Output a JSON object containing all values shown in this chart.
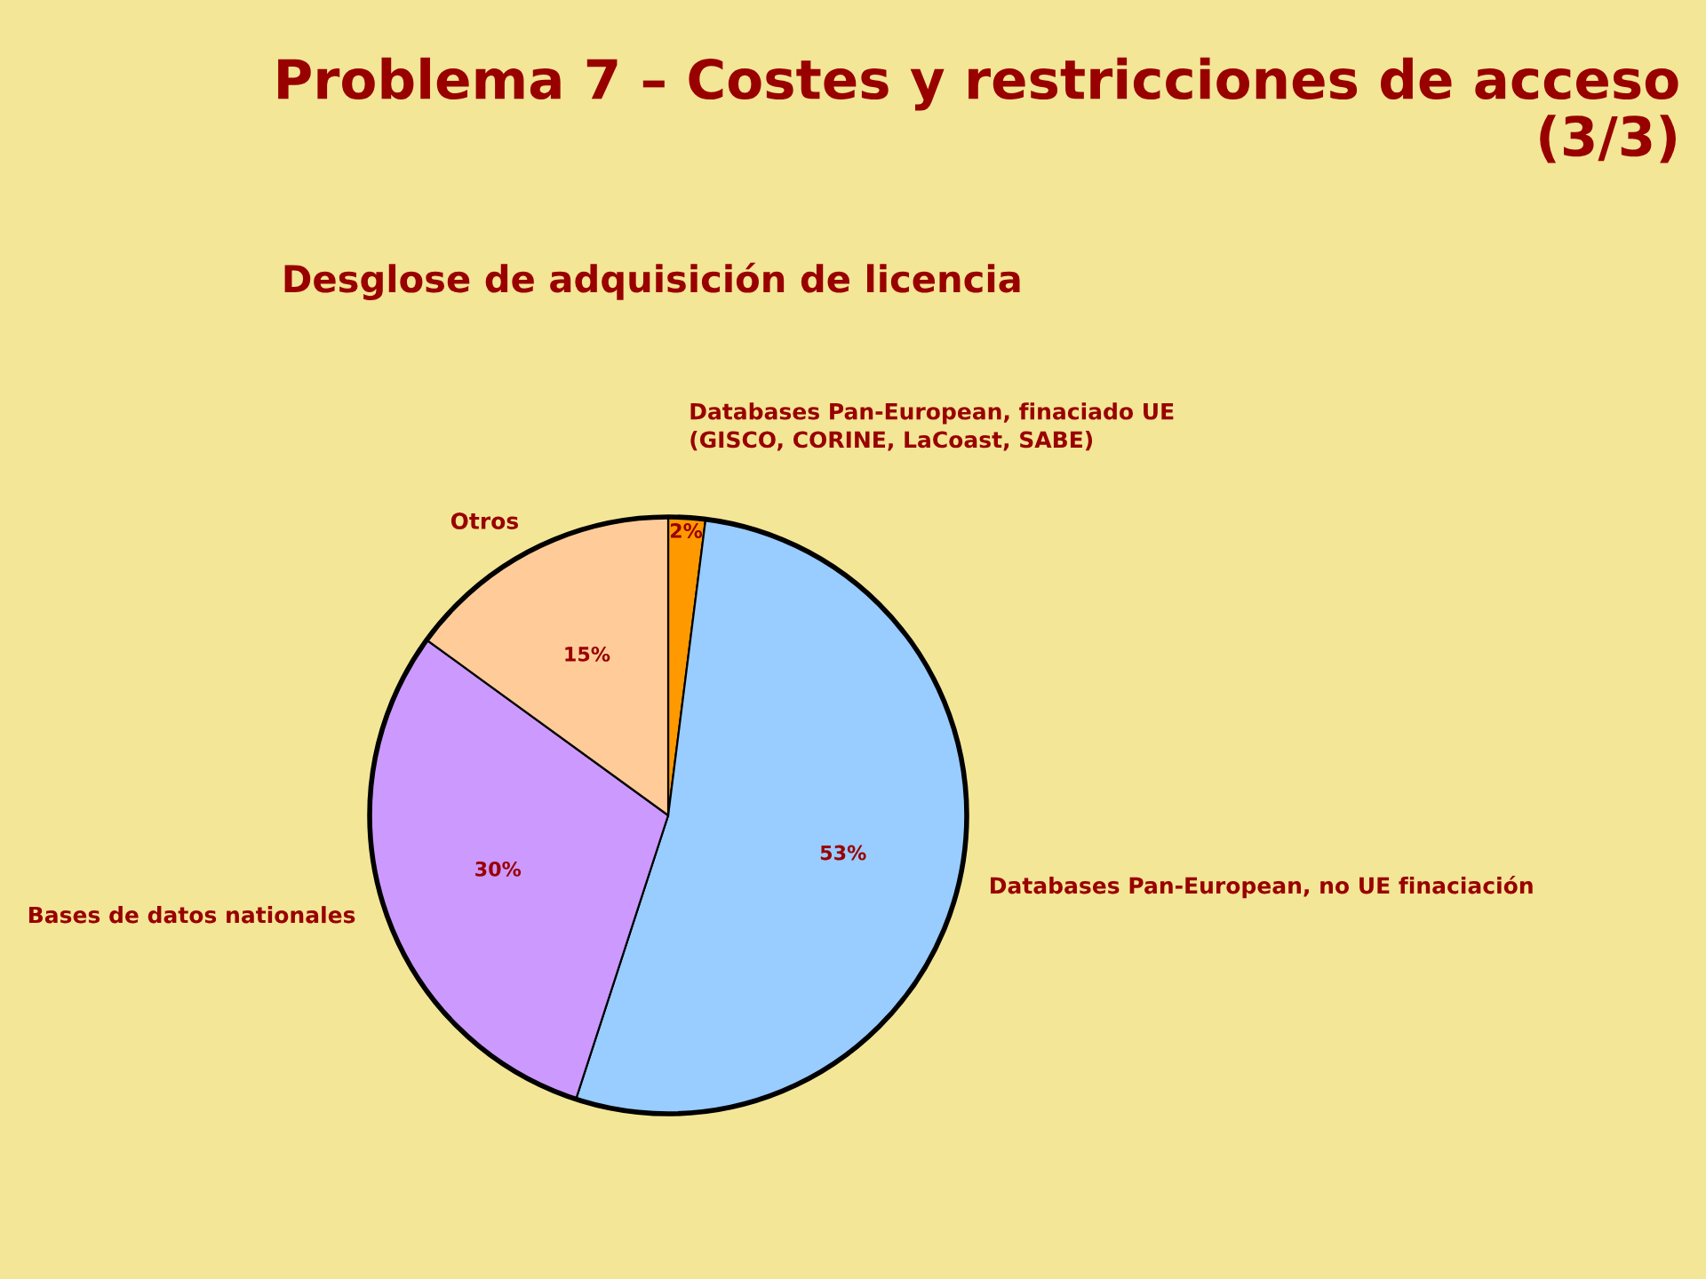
{
  "chart_data": {
    "type": "pie",
    "title": "Problema 7 – Costes y restricciones de acceso\n(3/3)",
    "subtitle": "Desglose de adquisición de licencia",
    "categories": [
      "Databases Pan-European, finaciado UE\n(GISCO, CORINE, LaCoast, SABE)",
      "Databases Pan-European, no UE finaciación",
      "Bases de datos nationales",
      "Otros"
    ],
    "values": [
      2,
      53,
      30,
      15
    ],
    "colors": [
      "#ff9900",
      "#99ccff",
      "#cc99ff",
      "#ffcc99"
    ],
    "value_labels": [
      "2%",
      "53%",
      "30%",
      "15%"
    ]
  }
}
